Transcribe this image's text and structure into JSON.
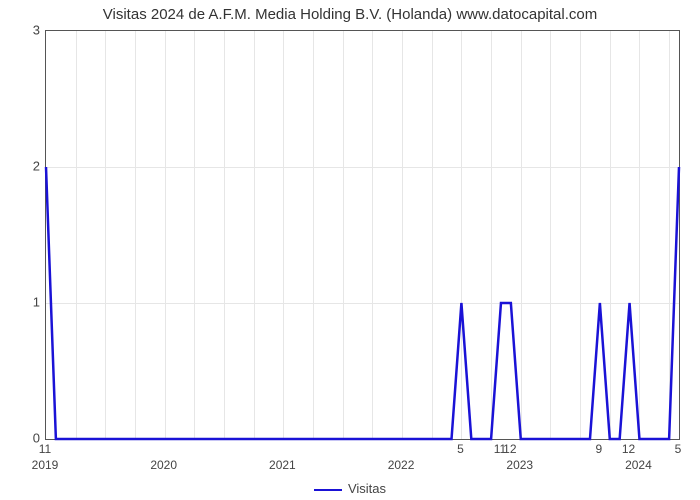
{
  "chart": {
    "type": "line",
    "title": "Visitas 2024 de A.F.M. Media Holding B.V. (Holanda) www.datocapital.com",
    "title_fontsize": 15,
    "background_color": "#ffffff",
    "grid_color": "#e6e6e6",
    "border_color": "#555555",
    "line_color": "#1a12d6",
    "line_width": 2.5,
    "text_color": "#444444",
    "ylim": [
      0,
      3
    ],
    "yticks": [
      0,
      1,
      2,
      3
    ],
    "x_years": [
      "2019",
      "2020",
      "2021",
      "2022",
      "2023",
      "2024"
    ],
    "x_year_positions_idx": [
      0,
      12,
      24,
      36,
      48,
      60
    ],
    "x_value_labels": [
      {
        "idx": 0,
        "text": "11"
      },
      {
        "idx": 42,
        "text": "5"
      },
      {
        "idx": 46,
        "text": "11"
      },
      {
        "idx": 47,
        "text": "12"
      },
      {
        "idx": 56,
        "text": "9"
      },
      {
        "idx": 59,
        "text": "12"
      },
      {
        "idx": 64,
        "text": "5"
      }
    ],
    "n_points": 65,
    "series": {
      "name": "Visitas",
      "values": [
        2,
        0,
        0,
        0,
        0,
        0,
        0,
        0,
        0,
        0,
        0,
        0,
        0,
        0,
        0,
        0,
        0,
        0,
        0,
        0,
        0,
        0,
        0,
        0,
        0,
        0,
        0,
        0,
        0,
        0,
        0,
        0,
        0,
        0,
        0,
        0,
        0,
        0,
        0,
        0,
        0,
        0,
        1,
        0,
        0,
        0,
        1,
        1,
        0,
        0,
        0,
        0,
        0,
        0,
        0,
        0,
        1,
        0,
        0,
        1,
        0,
        0,
        0,
        0,
        2
      ]
    },
    "legend": {
      "label": "Visitas"
    }
  }
}
